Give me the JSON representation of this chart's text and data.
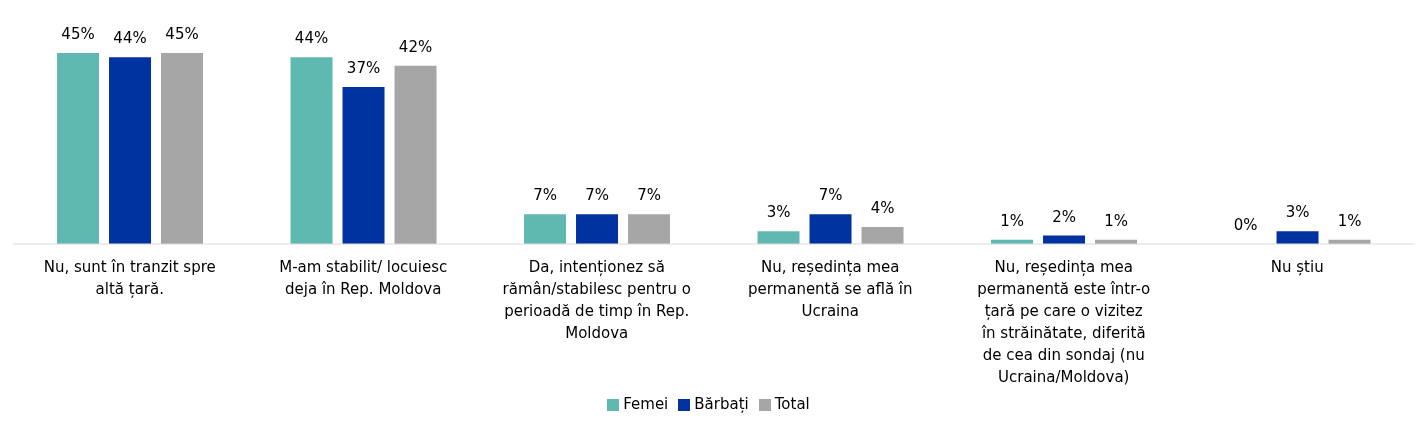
{
  "chart_data": {
    "type": "bar",
    "categories": [
      "Nu, sunt în tranzit spre altă țară.",
      "M-am stabilit/ locuiesc deja în Rep. Moldova",
      "Da, intenționez să rămân/stabilesc pentru o perioadă de timp în Rep. Moldova",
      "Nu, reședința mea permanentă se află în Ucraina",
      "Nu, reședința mea permanentă este într-o țară pe care o vizitez în străinătate, diferită de cea din sondaj (nu Ucraina/Moldova)",
      "Nu știu"
    ],
    "series": [
      {
        "name": "Femei",
        "color": "#5fb9b0",
        "values": [
          45,
          44,
          7,
          3,
          1,
          0
        ],
        "value_labels": [
          "45%",
          "44%",
          "7%",
          "3%",
          "1%",
          "0%"
        ]
      },
      {
        "name": "Bărbați",
        "color": "#0033a0",
        "values": [
          44,
          37,
          7,
          7,
          2,
          3
        ],
        "value_labels": [
          "44%",
          "37%",
          "7%",
          "7%",
          "2%",
          "3%"
        ]
      },
      {
        "name": "Total",
        "color": "#a6a6a6",
        "values": [
          45,
          42,
          7,
          4,
          1,
          1
        ],
        "value_labels": [
          "45%",
          "42%",
          "7%",
          "4%",
          "1%",
          "1%"
        ]
      }
    ],
    "legend": "bottom",
    "grid": false
  }
}
